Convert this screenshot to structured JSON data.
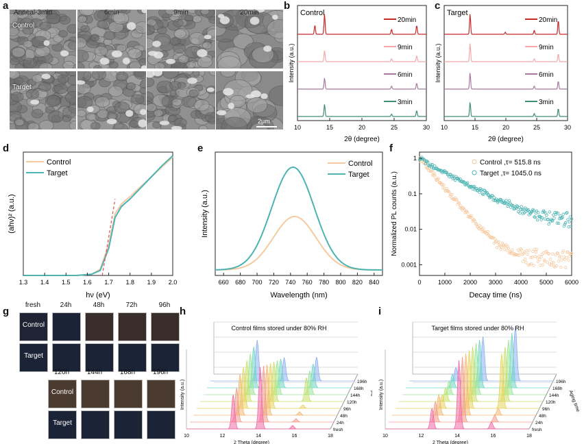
{
  "panels": {
    "a": {
      "label": "a",
      "columns": [
        "Anneal-3min",
        "6min",
        "9min",
        "20min"
      ],
      "rows": [
        "Control",
        "Target"
      ],
      "scale_bar": "2μm"
    },
    "b": {
      "label": "b",
      "title": "Control"
    },
    "c": {
      "label": "c",
      "title": "Target"
    },
    "d": {
      "label": "d"
    },
    "e": {
      "label": "e"
    },
    "f": {
      "label": "f"
    },
    "g": {
      "label": "g",
      "top_times": [
        "fresh",
        "24h",
        "48h",
        "72h",
        "96h"
      ],
      "bottom_times": [
        "120h",
        "144h",
        "168h",
        "196h"
      ],
      "rows": [
        "Control",
        "Target"
      ]
    },
    "h": {
      "label": "h",
      "title": "Control films stored under 80% RH",
      "xlabel": "2 Theta (degree)",
      "ylabel": "Intensity (a.u.)",
      "zlabel": "Aging time"
    },
    "i": {
      "label": "i",
      "title": "Target films stored under 80% RH",
      "xlabel": "2 Theta (degree)",
      "ylabel": "Intensity (a.u.)",
      "zlabel": "Aging time"
    }
  },
  "chart_data": [
    {
      "panel": "b",
      "type": "line",
      "title": "Control",
      "xlabel": "2θ (degree)",
      "ylabel": "Intensity (a.u.)",
      "xlim": [
        10,
        30
      ],
      "xticks": [
        10,
        15,
        20,
        25,
        30
      ],
      "series": [
        {
          "name": "20min",
          "color": "#c62828",
          "peaks": [
            [
              12.7,
              0.45
            ],
            [
              14.2,
              1.0
            ],
            [
              24.6,
              0.25
            ],
            [
              28.5,
              0.45
            ]
          ]
        },
        {
          "name": "9min",
          "color": "#f4a7a7",
          "peaks": [
            [
              14.2,
              0.55
            ],
            [
              24.6,
              0.15
            ],
            [
              28.5,
              0.3
            ]
          ]
        },
        {
          "name": "6min",
          "color": "#a57a9e",
          "peaks": [
            [
              14.2,
              0.55
            ],
            [
              24.6,
              0.15
            ],
            [
              28.5,
              0.3
            ]
          ]
        },
        {
          "name": "3min",
          "color": "#3d8d6e",
          "peaks": [
            [
              14.2,
              0.6
            ],
            [
              24.6,
              0.12
            ],
            [
              28.5,
              0.3
            ]
          ]
        }
      ]
    },
    {
      "panel": "c",
      "type": "line",
      "title": "Target",
      "xlabel": "2θ (degree)",
      "ylabel": "Intensity (a.u.)",
      "xlim": [
        10,
        30
      ],
      "xticks": [
        10,
        15,
        20,
        25,
        30
      ],
      "series": [
        {
          "name": "20min",
          "color": "#c62828",
          "peaks": [
            [
              14.2,
              1.0
            ],
            [
              19.9,
              0.1
            ],
            [
              24.6,
              0.2
            ],
            [
              28.5,
              0.7
            ]
          ]
        },
        {
          "name": "9min",
          "color": "#f4a7a7",
          "peaks": [
            [
              14.2,
              0.9
            ],
            [
              24.6,
              0.15
            ],
            [
              28.5,
              0.4
            ]
          ]
        },
        {
          "name": "6min",
          "color": "#a57a9e",
          "peaks": [
            [
              14.2,
              0.8
            ],
            [
              24.6,
              0.15
            ],
            [
              28.5,
              0.4
            ]
          ]
        },
        {
          "name": "3min",
          "color": "#3d8d6e",
          "peaks": [
            [
              14.2,
              0.7
            ],
            [
              24.6,
              0.15
            ],
            [
              28.5,
              0.4
            ]
          ]
        }
      ]
    },
    {
      "panel": "d",
      "type": "line",
      "xlabel": "hν (eV)",
      "ylabel": "(ahν)² (a.u.)",
      "xlim": [
        1.3,
        2.0
      ],
      "xticks": [
        "1.3",
        "1.4",
        "1.5",
        "1.6",
        "1.7",
        "1.8",
        "1.9",
        "2.0"
      ],
      "series": [
        {
          "name": "Control",
          "color": "#f6c9a0",
          "points": [
            [
              1.3,
              0
            ],
            [
              1.55,
              0
            ],
            [
              1.62,
              0.01
            ],
            [
              1.66,
              0.05
            ],
            [
              1.7,
              0.25
            ],
            [
              1.73,
              0.5
            ],
            [
              1.76,
              0.58
            ],
            [
              1.8,
              0.64
            ],
            [
              1.85,
              0.72
            ],
            [
              1.9,
              0.8
            ],
            [
              1.95,
              0.88
            ],
            [
              2.0,
              0.96
            ]
          ]
        },
        {
          "name": "Target",
          "color": "#4bb3b3",
          "points": [
            [
              1.3,
              0
            ],
            [
              1.55,
              0
            ],
            [
              1.62,
              0.01
            ],
            [
              1.66,
              0.04
            ],
            [
              1.7,
              0.22
            ],
            [
              1.73,
              0.47
            ],
            [
              1.76,
              0.56
            ],
            [
              1.8,
              0.62
            ],
            [
              1.85,
              0.71
            ],
            [
              1.9,
              0.8
            ],
            [
              1.95,
              0.89
            ],
            [
              2.0,
              0.97
            ]
          ]
        }
      ],
      "fit_line": {
        "color": "#e05050",
        "points": [
          [
            1.67,
            0
          ],
          [
            1.73,
            0.62
          ]
        ]
      }
    },
    {
      "panel": "e",
      "type": "line",
      "xlabel": "Wavelength (nm)",
      "ylabel": "Intensity (a.u.)",
      "xlim": [
        650,
        850
      ],
      "xticks": [
        660,
        680,
        700,
        720,
        740,
        760,
        780,
        800,
        820,
        840
      ],
      "series": [
        {
          "name": "Control",
          "color": "#f6c9a0",
          "peak_nm": 745,
          "height": 0.52,
          "fwhm": 60
        },
        {
          "name": "Target",
          "color": "#4bb3b3",
          "peak_nm": 743,
          "height": 1.0,
          "fwhm": 60
        }
      ]
    },
    {
      "panel": "f",
      "type": "scatter",
      "xlabel": "Decay time (ns)",
      "ylabel": "Normalized PL counts (a.u.)",
      "xlim": [
        0,
        6000
      ],
      "yscale": "log",
      "ylim": [
        0.0005,
        1.5
      ],
      "xticks": [
        "0",
        "1000",
        "2000",
        "3000",
        "4000",
        "5000",
        "6000"
      ],
      "yticks": [
        {
          "v": 1,
          "t": "1"
        },
        {
          "v": 0.1,
          "t": "0.1"
        },
        {
          "v": 0.01,
          "t": "0.01"
        },
        {
          "v": 0.001,
          "t": "0.001"
        }
      ],
      "series": [
        {
          "name": "Control ,τ= 515.8 ns",
          "color": "#f6c9a0",
          "tau": 515.8,
          "floor": 0.002
        },
        {
          "name": "Target ,τ= 1045.0 ns",
          "color": "#4bb3b3",
          "tau": 1045.0,
          "floor": 0.02
        }
      ]
    }
  ],
  "ridge_ticks": {
    "x": [
      "10",
      "12",
      "14",
      "16",
      "18"
    ],
    "z": [
      "fresh",
      "24h",
      "48h",
      "96h",
      "120h",
      "144h",
      "168h",
      "196h"
    ]
  },
  "ridge_colors": [
    "#f06aa6",
    "#f39a8b",
    "#f3b972",
    "#e7d35e",
    "#c8e06a",
    "#9be59b",
    "#6fd6c8",
    "#8fb0f0"
  ],
  "colors": {
    "sem_gray": "#8a8a8a",
    "film_dark": "#182033",
    "film_brown": "#3b2f2a"
  }
}
